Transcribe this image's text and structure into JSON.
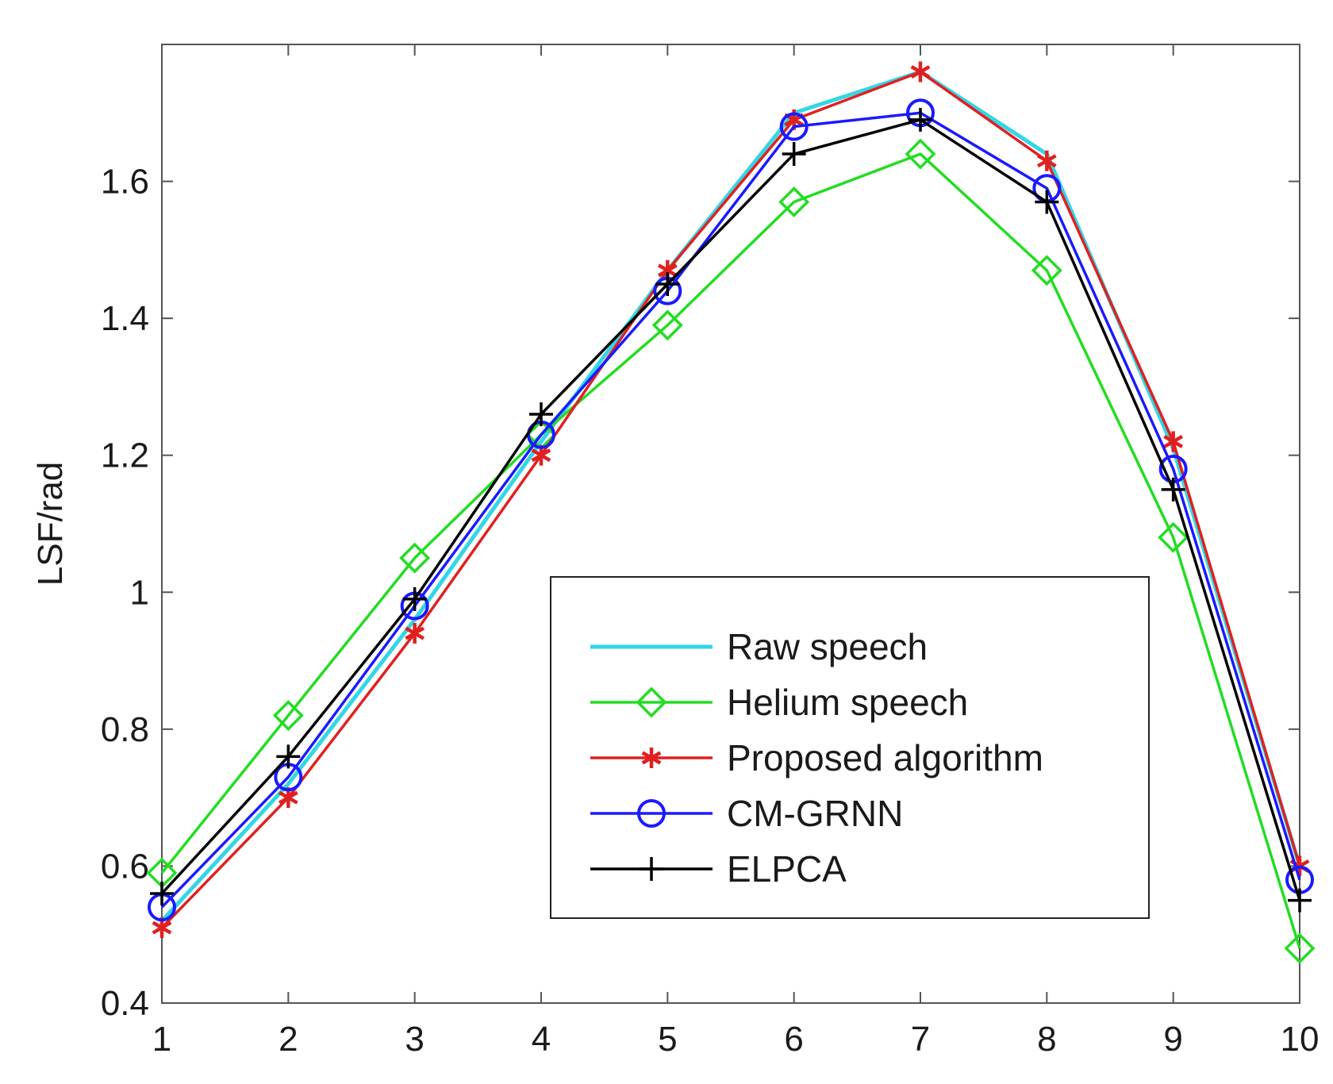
{
  "chart_data": {
    "type": "line",
    "title": "",
    "xlabel": "",
    "ylabel": "LSF/rad",
    "x": [
      1,
      2,
      3,
      4,
      5,
      6,
      7,
      8,
      9,
      10
    ],
    "xlim": [
      1,
      10
    ],
    "ylim": [
      0.4,
      1.8
    ],
    "xticks": [
      "1",
      "2",
      "3",
      "4",
      "5",
      "6",
      "7",
      "8",
      "9",
      "10"
    ],
    "yticks": [
      "0.4",
      "0.6",
      "0.8",
      "1",
      "1.2",
      "1.4",
      "1.6"
    ],
    "ytick_values": [
      0.4,
      0.6,
      0.8,
      1.0,
      1.2,
      1.4,
      1.6
    ],
    "grid": false,
    "legend_position": "bottom-right",
    "series": [
      {
        "name": "Raw speech",
        "color": "#33d6e6",
        "marker": "none",
        "values": [
          0.52,
          0.72,
          0.96,
          1.22,
          1.47,
          1.7,
          1.76,
          1.64,
          1.21,
          0.6
        ]
      },
      {
        "name": "Helium speech",
        "color": "#22dd22",
        "marker": "diamond",
        "values": [
          0.59,
          0.82,
          1.05,
          1.23,
          1.39,
          1.57,
          1.64,
          1.47,
          1.08,
          0.48
        ]
      },
      {
        "name": "Proposed algorithm",
        "color": "#e02020",
        "marker": "asterisk",
        "values": [
          0.51,
          0.7,
          0.94,
          1.2,
          1.47,
          1.69,
          1.76,
          1.63,
          1.22,
          0.6
        ]
      },
      {
        "name": "CM-GRNN",
        "color": "#1a1aff",
        "marker": "circle",
        "values": [
          0.54,
          0.73,
          0.98,
          1.23,
          1.44,
          1.68,
          1.7,
          1.59,
          1.18,
          0.58
        ]
      },
      {
        "name": "ELPCA",
        "color": "#000000",
        "marker": "plus",
        "values": [
          0.56,
          0.76,
          0.99,
          1.26,
          1.45,
          1.64,
          1.69,
          1.57,
          1.15,
          0.55
        ]
      }
    ]
  }
}
